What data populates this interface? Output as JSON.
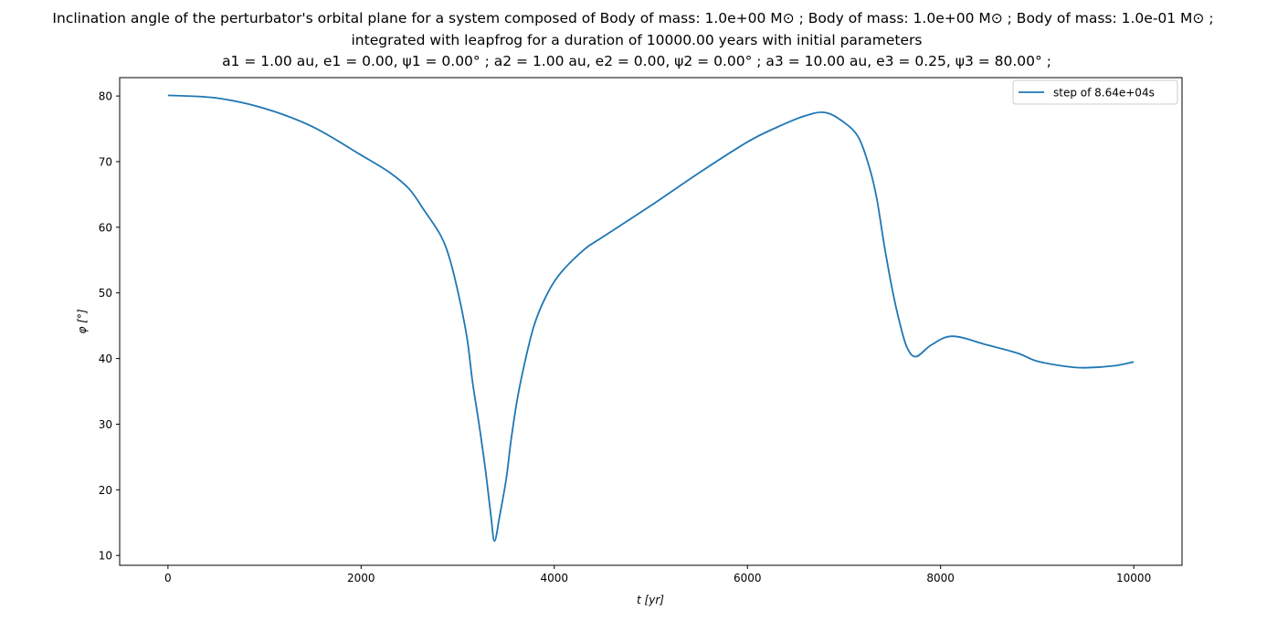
{
  "chart_data": {
    "type": "line",
    "title_lines": [
      "Inclination angle of the perturbator's orbital plane for a system composed of Body of mass: 1.0e+00 M⊙ ; Body of mass: 1.0e+00 M⊙ ; Body of mass: 1.0e-01 M⊙ ;",
      "integrated with leapfrog for a duration of 10000.00 years with initial parameters",
      "a1 = 1.00 au, e1 = 0.00, ψ1 = 0.00° ; a2 = 1.00 au, e2 = 0.00, ψ2 = 0.00° ; a3 = 10.00 au, e3 = 0.25, ψ3 = 80.00° ;"
    ],
    "xlabel": "t [yr]",
    "ylabel": "φ [°]",
    "xlim": [
      -500,
      10500
    ],
    "ylim": [
      8.5,
      82.8
    ],
    "xticks": [
      0,
      2000,
      4000,
      6000,
      8000,
      10000
    ],
    "yticks": [
      10,
      20,
      30,
      40,
      50,
      60,
      70,
      80
    ],
    "grid": false,
    "legend_position": "top-right",
    "series": [
      {
        "name": "step of 8.64e+04s",
        "color": "#1f77b4",
        "x": [
          0,
          500,
          1000,
          1500,
          2000,
          2300,
          2500,
          2652,
          2822,
          2917,
          3011,
          3097,
          3153,
          3220,
          3286,
          3343,
          3381,
          3437,
          3504,
          3551,
          3617,
          3693,
          3788,
          3902,
          4053,
          4309,
          4500,
          5000,
          5500,
          6000,
          6300,
          6581,
          6799,
          6989,
          7150,
          7263,
          7339,
          7415,
          7500,
          7576,
          7652,
          7746,
          7907,
          8125,
          8475,
          8800,
          9000,
          9300,
          9500,
          9800,
          10000
        ],
        "y": [
          80.1,
          79.7,
          78.1,
          75.3,
          71.0,
          68.3,
          65.8,
          62.6,
          58.8,
          55.2,
          49.6,
          43.1,
          36.5,
          30.1,
          23.2,
          16.2,
          12.2,
          16.2,
          21.8,
          27.4,
          33.8,
          39.3,
          44.9,
          49.1,
          52.8,
          56.6,
          58.5,
          63.3,
          68.3,
          73.0,
          75.2,
          76.9,
          77.5,
          76.1,
          73.7,
          69.1,
          64.4,
          57.4,
          50.5,
          45.5,
          41.7,
          40.3,
          42.1,
          43.4,
          42.1,
          40.8,
          39.6,
          38.8,
          38.6,
          38.9,
          39.5
        ]
      }
    ]
  }
}
